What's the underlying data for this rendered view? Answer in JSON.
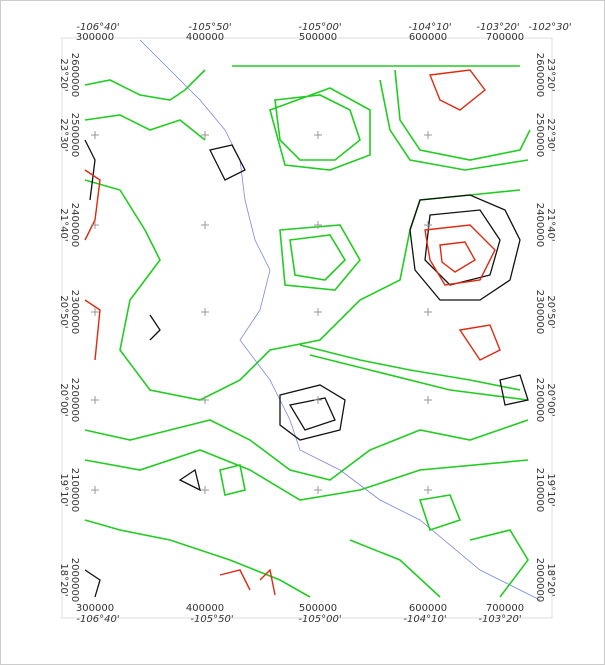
{
  "map": {
    "top_axis": {
      "eastings": [
        "300000",
        "400000",
        "500000",
        "600000",
        "700000"
      ],
      "longitudes": [
        "-106°40'",
        "-105°50'",
        "-105°00'",
        "-104°10'",
        "-103°20'",
        "-102°30'"
      ]
    },
    "bottom_axis": {
      "eastings": [
        "300000",
        "400000",
        "500000",
        "600000",
        "700000"
      ],
      "longitudes": [
        "-106°40'",
        "-105°50'",
        "-105°00'",
        "-104°10'",
        "-103°20'"
      ]
    },
    "left_axis": {
      "northings": [
        "2600000",
        "2500000",
        "2400000",
        "2300000",
        "2200000",
        "2100000",
        "2000000"
      ],
      "latitudes": [
        "23°20'",
        "22°30'",
        "21°40'",
        "20°50'",
        "20°00'",
        "19°10'",
        "18°20'"
      ]
    },
    "right_axis": {
      "northings": [
        "2600000",
        "2500000",
        "2400000",
        "2300000",
        "2200000",
        "2100000",
        "2000000"
      ],
      "latitudes": [
        "23°20'",
        "22°30'",
        "21°40'",
        "20°50'",
        "20°00'",
        "19°10'",
        "18°20'"
      ]
    }
  }
}
